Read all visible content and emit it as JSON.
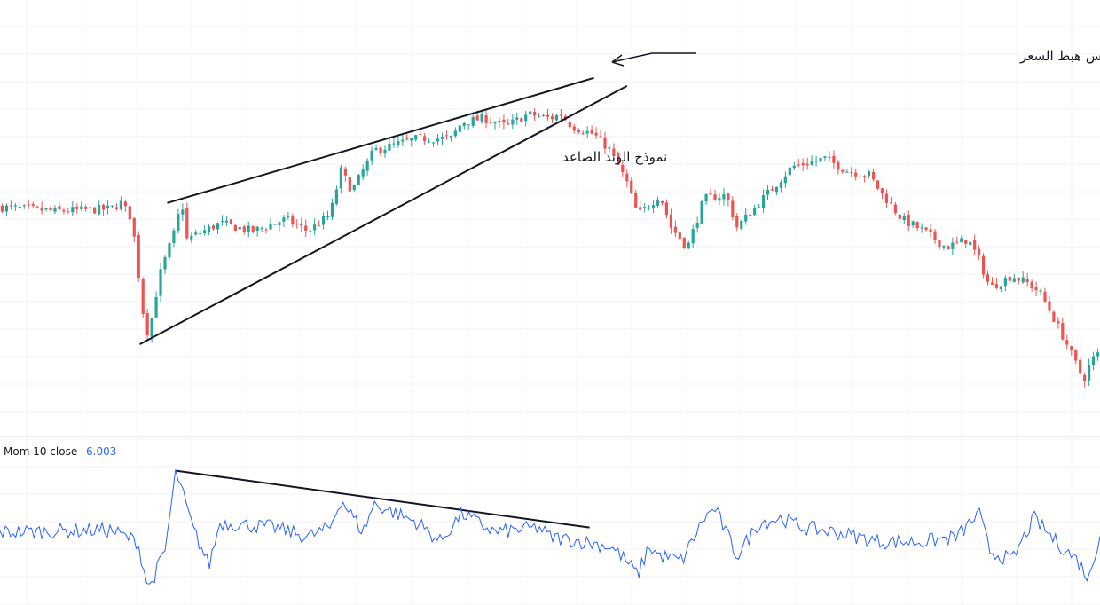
{
  "colors": {
    "up": "#26a69a",
    "down": "#ef5350",
    "momentum": "#2962ff",
    "grid": "#f0f3fa",
    "line": "#131722"
  },
  "indicator": {
    "name": "Mom",
    "params": "10 close",
    "value": "6.003"
  },
  "annotations": {
    "wedge_label": "نموذج الوتد الصاعد",
    "breakout_label": "بعد كسر النموذج مع وجود دايفرجنس هبط السعر"
  },
  "chart_data": {
    "type": "candlestick",
    "price_range": [
      0,
      100
    ],
    "momentum_range": [
      -15,
      15
    ],
    "grid": true,
    "price_anchors": [
      {
        "x": 0,
        "v": 52
      },
      {
        "x": 0.05,
        "v": 51
      },
      {
        "x": 0.1,
        "v": 51.5
      },
      {
        "x": 0.11,
        "v": 53
      },
      {
        "x": 0.12,
        "v": 49
      },
      {
        "x": 0.13,
        "v": 26
      },
      {
        "x": 0.135,
        "v": 20
      },
      {
        "x": 0.145,
        "v": 35
      },
      {
        "x": 0.16,
        "v": 47
      },
      {
        "x": 0.165,
        "v": 54
      },
      {
        "x": 0.17,
        "v": 44
      },
      {
        "x": 0.2,
        "v": 48
      },
      {
        "x": 0.23,
        "v": 46
      },
      {
        "x": 0.26,
        "v": 49
      },
      {
        "x": 0.28,
        "v": 46
      },
      {
        "x": 0.3,
        "v": 50
      },
      {
        "x": 0.31,
        "v": 61
      },
      {
        "x": 0.32,
        "v": 56
      },
      {
        "x": 0.34,
        "v": 66
      },
      {
        "x": 0.38,
        "v": 69
      },
      {
        "x": 0.41,
        "v": 69
      },
      {
        "x": 0.42,
        "v": 73
      },
      {
        "x": 0.44,
        "v": 74
      },
      {
        "x": 0.46,
        "v": 72
      },
      {
        "x": 0.48,
        "v": 75
      },
      {
        "x": 0.5,
        "v": 74
      },
      {
        "x": 0.51,
        "v": 75
      },
      {
        "x": 0.52,
        "v": 72
      },
      {
        "x": 0.54,
        "v": 70
      },
      {
        "x": 0.555,
        "v": 66
      },
      {
        "x": 0.57,
        "v": 58
      },
      {
        "x": 0.58,
        "v": 50
      },
      {
        "x": 0.6,
        "v": 55
      },
      {
        "x": 0.61,
        "v": 47
      },
      {
        "x": 0.625,
        "v": 42
      },
      {
        "x": 0.64,
        "v": 54
      },
      {
        "x": 0.66,
        "v": 55
      },
      {
        "x": 0.67,
        "v": 47
      },
      {
        "x": 0.69,
        "v": 53
      },
      {
        "x": 0.72,
        "v": 62
      },
      {
        "x": 0.75,
        "v": 64
      },
      {
        "x": 0.77,
        "v": 61
      },
      {
        "x": 0.79,
        "v": 60
      },
      {
        "x": 0.8,
        "v": 56
      },
      {
        "x": 0.82,
        "v": 49
      },
      {
        "x": 0.84,
        "v": 46
      },
      {
        "x": 0.86,
        "v": 42
      },
      {
        "x": 0.88,
        "v": 44
      },
      {
        "x": 0.89,
        "v": 39
      },
      {
        "x": 0.9,
        "v": 32
      },
      {
        "x": 0.92,
        "v": 35
      },
      {
        "x": 0.935,
        "v": 33
      },
      {
        "x": 0.945,
        "v": 31
      },
      {
        "x": 0.955,
        "v": 26
      },
      {
        "x": 0.97,
        "v": 18
      },
      {
        "x": 0.985,
        "v": 9
      },
      {
        "x": 0.992,
        "v": 14
      },
      {
        "x": 1,
        "v": 16
      }
    ],
    "momentum_anchors": [
      {
        "x": 0,
        "v": 0
      },
      {
        "x": 0.1,
        "v": 0.5
      },
      {
        "x": 0.125,
        "v": -2
      },
      {
        "x": 0.135,
        "v": -12
      },
      {
        "x": 0.15,
        "v": -4
      },
      {
        "x": 0.16,
        "v": 13
      },
      {
        "x": 0.175,
        "v": 1
      },
      {
        "x": 0.19,
        "v": -7
      },
      {
        "x": 0.2,
        "v": 2
      },
      {
        "x": 0.25,
        "v": 1
      },
      {
        "x": 0.28,
        "v": -1
      },
      {
        "x": 0.3,
        "v": 1
      },
      {
        "x": 0.31,
        "v": 7
      },
      {
        "x": 0.33,
        "v": 0
      },
      {
        "x": 0.34,
        "v": 6
      },
      {
        "x": 0.38,
        "v": 2
      },
      {
        "x": 0.4,
        "v": -2
      },
      {
        "x": 0.42,
        "v": 4
      },
      {
        "x": 0.45,
        "v": 0
      },
      {
        "x": 0.49,
        "v": 1
      },
      {
        "x": 0.5,
        "v": -1
      },
      {
        "x": 0.53,
        "v": -2
      },
      {
        "x": 0.555,
        "v": -3
      },
      {
        "x": 0.565,
        "v": -5
      },
      {
        "x": 0.58,
        "v": -9
      },
      {
        "x": 0.59,
        "v": -3
      },
      {
        "x": 0.6,
        "v": -5
      },
      {
        "x": 0.62,
        "v": -6
      },
      {
        "x": 0.64,
        "v": 3
      },
      {
        "x": 0.65,
        "v": 5
      },
      {
        "x": 0.67,
        "v": -5
      },
      {
        "x": 0.69,
        "v": 2
      },
      {
        "x": 0.71,
        "v": 3
      },
      {
        "x": 0.73,
        "v": 1
      },
      {
        "x": 0.76,
        "v": 0
      },
      {
        "x": 0.78,
        "v": -1
      },
      {
        "x": 0.8,
        "v": -2
      },
      {
        "x": 0.84,
        "v": -2
      },
      {
        "x": 0.87,
        "v": -1
      },
      {
        "x": 0.89,
        "v": 4
      },
      {
        "x": 0.9,
        "v": -4
      },
      {
        "x": 0.92,
        "v": -6
      },
      {
        "x": 0.94,
        "v": 3
      },
      {
        "x": 0.96,
        "v": -2
      },
      {
        "x": 0.98,
        "v": -6
      },
      {
        "x": 0.99,
        "v": -10
      },
      {
        "x": 1,
        "v": 0
      }
    ],
    "candle_count": 250,
    "trendlines": [
      {
        "name": "wedge-upper",
        "pane": "price",
        "from": {
          "x": 0.152,
          "v": 53
        },
        "to": {
          "x": 0.54,
          "v": 84
        }
      },
      {
        "name": "wedge-lower",
        "pane": "price",
        "from": {
          "x": 0.127,
          "v": 18
        },
        "to": {
          "x": 0.57,
          "v": 82
        }
      },
      {
        "name": "momentum-divergence",
        "pane": "momentum",
        "from": {
          "x": 0.16,
          "v": 13
        },
        "to": {
          "x": 0.536,
          "v": 1
        }
      }
    ]
  }
}
